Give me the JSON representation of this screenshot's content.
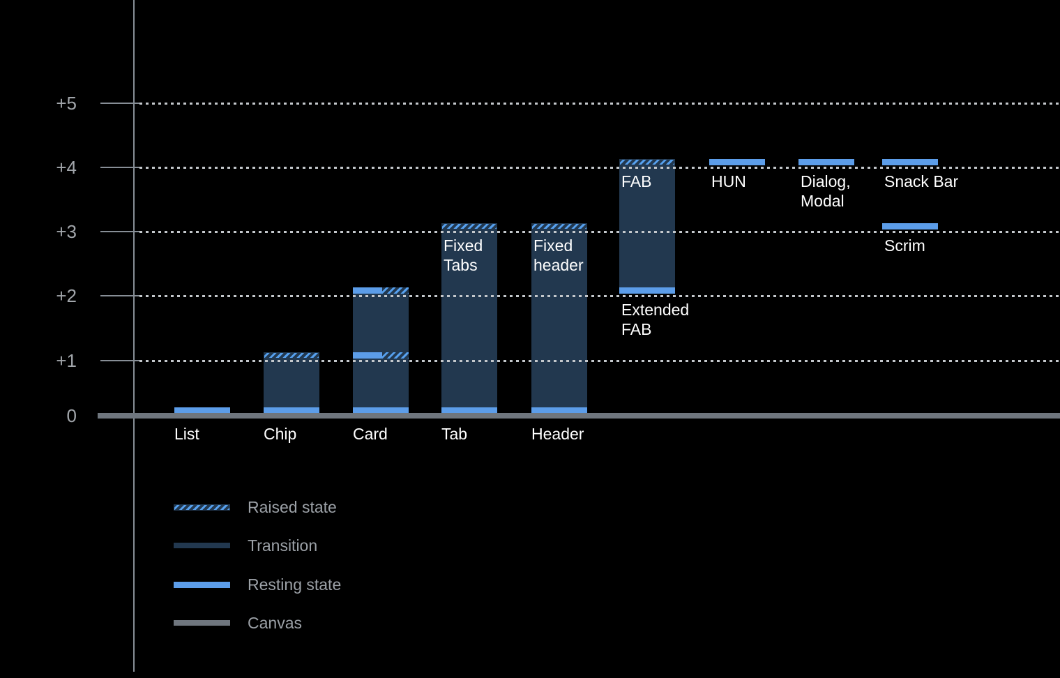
{
  "colors": {
    "background": "#000000",
    "axis_line": "#878E96",
    "canvas": "#6F767E",
    "gridline": "#C4C8CC",
    "transition": "#22384F",
    "resting": "#5C9DE9",
    "hatch_stripe": "#56A0EE",
    "bar_label": "#FFFFFF",
    "tick_label": "#A2A6AB",
    "legend_label": "#9CA1A7"
  },
  "chart_data": {
    "type": "bar",
    "title": "",
    "xlabel": "",
    "ylabel": "",
    "y_axis": {
      "range": [
        0,
        5
      ],
      "grid": "dotted-horizontal",
      "ticks": [
        {
          "label": "+5",
          "value": 5
        },
        {
          "label": "+4",
          "value": 4
        },
        {
          "label": "+3",
          "value": 3
        },
        {
          "label": "+2",
          "value": 2
        },
        {
          "label": "+1",
          "value": 1
        },
        {
          "label": "0",
          "value": 0
        }
      ]
    },
    "legend": {
      "position": "bottom-left",
      "items": [
        {
          "label": "Raised state",
          "style": "raised"
        },
        {
          "label": "Transition",
          "style": "transition"
        },
        {
          "label": "Resting state",
          "style": "resting"
        },
        {
          "label": "Canvas",
          "style": "canvas"
        }
      ]
    },
    "bars": [
      {
        "name": "list",
        "slot": 0,
        "axis_label": "List",
        "resting_levels": [
          0
        ],
        "transition": null,
        "raised_levels": [],
        "split_levels": [],
        "labels": []
      },
      {
        "name": "chip",
        "slot": 1,
        "axis_label": "Chip",
        "resting_levels": [
          0
        ],
        "transition": {
          "from": 0,
          "to": 1
        },
        "raised_levels": [
          1
        ],
        "split_levels": [],
        "labels": []
      },
      {
        "name": "card",
        "slot": 2,
        "axis_label": "Card",
        "resting_levels": [
          0
        ],
        "transition": {
          "from": 0,
          "to": 2
        },
        "raised_levels": [],
        "split_levels": [
          2,
          1
        ],
        "labels": []
      },
      {
        "name": "tab",
        "slot": 3,
        "axis_label": "Tab",
        "resting_levels": [
          0
        ],
        "transition": {
          "from": 0,
          "to": 3
        },
        "raised_levels": [
          3
        ],
        "split_levels": [],
        "labels": [
          {
            "lines": [
              "Fixed",
              "Tabs"
            ],
            "level": 3,
            "placement": "inside"
          }
        ]
      },
      {
        "name": "header",
        "slot": 4,
        "axis_label": "Header",
        "resting_levels": [
          0
        ],
        "transition": {
          "from": 0,
          "to": 3
        },
        "raised_levels": [
          3
        ],
        "split_levels": [],
        "labels": [
          {
            "lines": [
              "Fixed",
              "header"
            ],
            "level": 3,
            "placement": "inside"
          }
        ]
      },
      {
        "name": "extended-fab",
        "slot": 5,
        "axis_label": null,
        "resting_levels": [
          2
        ],
        "transition": {
          "from": 2,
          "to": 4
        },
        "raised_levels": [
          4
        ],
        "split_levels": [],
        "labels": [
          {
            "lines": [
              "FAB"
            ],
            "level": 4,
            "placement": "inside"
          },
          {
            "lines": [
              "Extended",
              "FAB"
            ],
            "level": 2,
            "placement": "below"
          }
        ]
      },
      {
        "name": "hun",
        "slot": 6,
        "axis_label": null,
        "resting_levels": [
          4
        ],
        "transition": null,
        "raised_levels": [],
        "split_levels": [],
        "labels": [
          {
            "lines": [
              "HUN"
            ],
            "level": 4,
            "placement": "below"
          }
        ]
      },
      {
        "name": "dialog-modal",
        "slot": 7,
        "axis_label": null,
        "resting_levels": [
          4
        ],
        "transition": null,
        "raised_levels": [],
        "split_levels": [],
        "labels": [
          {
            "lines": [
              "Dialog,",
              "Modal"
            ],
            "level": 4,
            "placement": "below"
          }
        ]
      },
      {
        "name": "snack-bar",
        "slot": 8,
        "axis_label": null,
        "resting_levels": [
          4
        ],
        "transition": null,
        "raised_levels": [],
        "split_levels": [],
        "labels": [
          {
            "lines": [
              "Snack Bar"
            ],
            "level": 4,
            "placement": "below"
          }
        ]
      },
      {
        "name": "scrim",
        "slot": 8,
        "axis_label": null,
        "resting_levels": [
          3
        ],
        "transition": null,
        "raised_levels": [],
        "split_levels": [],
        "labels": [
          {
            "lines": [
              "Scrim"
            ],
            "level": 3,
            "placement": "below"
          }
        ]
      }
    ]
  }
}
